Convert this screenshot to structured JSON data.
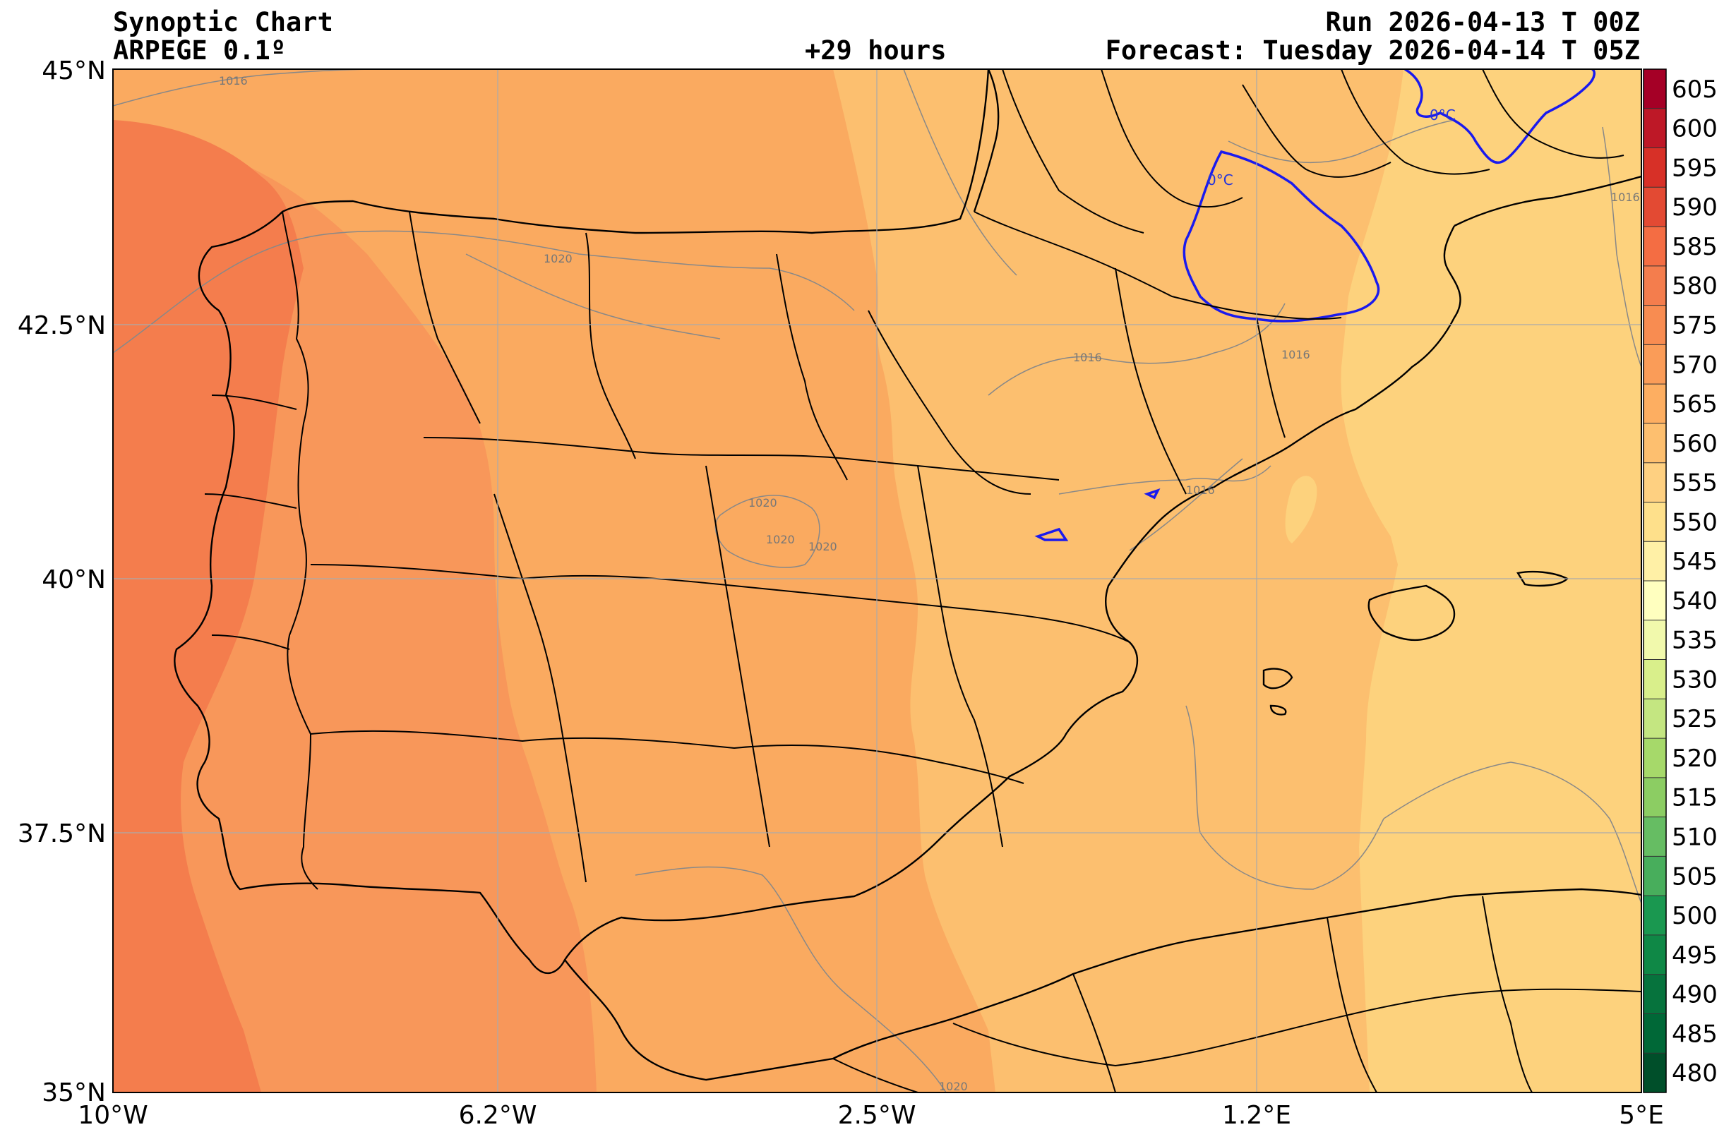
{
  "header": {
    "title_left_1": "Synoptic Chart",
    "title_left_2": "ARPEGE 0.1º",
    "title_center": "+29 hours",
    "title_right_1": "Run 2026-04-13 T 00Z",
    "title_right_2": "Forecast: Tuesday 2026-04-14 T 05Z"
  },
  "map": {
    "lon_ticks": [
      "10°W",
      "6.2°W",
      "2.5°W",
      "1.2°E",
      "5°E"
    ],
    "lat_ticks": [
      "45°N",
      "42.5°N",
      "40°N",
      "37.5°N",
      "35°N"
    ],
    "isobar_labels": [
      "1016",
      "1020",
      "1016",
      "1016",
      "1016",
      "1020",
      "1020",
      "1020",
      "1016",
      "1020"
    ],
    "freezing_labels": [
      "0°C",
      "0°C"
    ],
    "colors": {
      "band_575_580": "#f47d4d",
      "band_570_575": "#f8975a",
      "band_565_570": "#faaa60",
      "band_560_565": "#fcbf6f",
      "band_555_560": "#fdd27d",
      "isobar": "#888888",
      "freezing_line": "#1a1aee",
      "borders": "#000000"
    }
  },
  "colorbar": {
    "labels": [
      "605",
      "600",
      "595",
      "590",
      "585",
      "580",
      "575",
      "570",
      "565",
      "560",
      "555",
      "550",
      "545",
      "540",
      "535",
      "530",
      "525",
      "520",
      "515",
      "510",
      "505",
      "500",
      "495",
      "490",
      "485",
      "480"
    ],
    "colors": [
      "#a50026",
      "#be1827",
      "#d73027",
      "#e34a33",
      "#f46d43",
      "#f47d4d",
      "#f88c51",
      "#fa9c58",
      "#fdae61",
      "#fdbf6f",
      "#fed081",
      "#fee08b",
      "#fff0a6",
      "#ffffbf",
      "#f1f9ac",
      "#d9ef8b",
      "#c4e681",
      "#a6d96a",
      "#8ccd63",
      "#66bd63",
      "#48ae5c",
      "#1a9850",
      "#0f8846",
      "#06733d",
      "#006837",
      "#004f2a"
    ]
  }
}
